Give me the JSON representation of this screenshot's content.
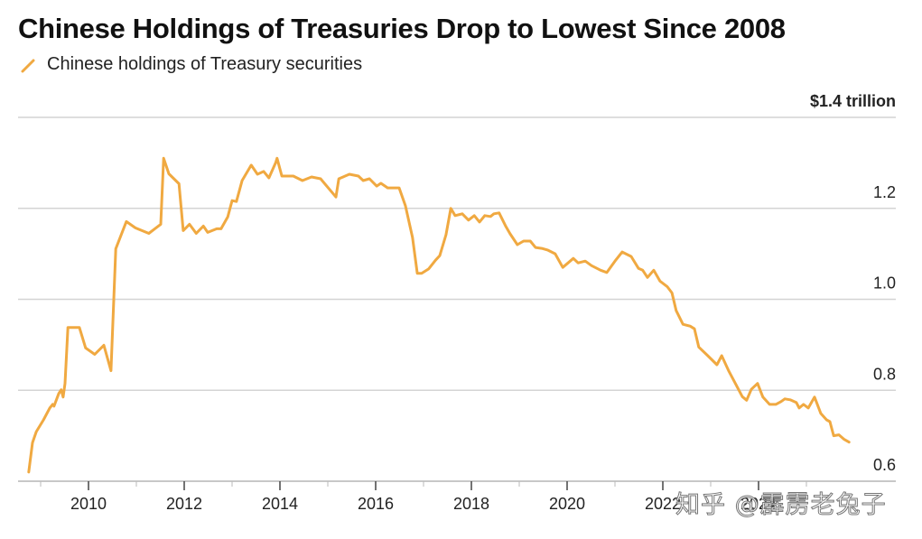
{
  "chart_data": {
    "type": "line",
    "title": "Chinese Holdings of Treasuries Drop to Lowest Since 2008",
    "xlabel": "",
    "ylabel": "",
    "y_unit_label": "$1.4 trillion",
    "ylim": [
      0.6,
      1.4
    ],
    "xlim": [
      2008.6,
      2025.8
    ],
    "grid": true,
    "legend_position": "top-left",
    "y_ticks": [
      {
        "value": 1.4,
        "label": "$1.4 trillion"
      },
      {
        "value": 1.2,
        "label": "1.2"
      },
      {
        "value": 1.0,
        "label": "1.0"
      },
      {
        "value": 0.8,
        "label": "0.8"
      },
      {
        "value": 0.6,
        "label": "0.6"
      }
    ],
    "x_ticks": [
      {
        "value": 2010,
        "label": "2010"
      },
      {
        "value": 2012,
        "label": "2012"
      },
      {
        "value": 2014,
        "label": "2014"
      },
      {
        "value": 2016,
        "label": "2016"
      },
      {
        "value": 2018,
        "label": "2018"
      },
      {
        "value": 2020,
        "label": "2020"
      },
      {
        "value": 2022,
        "label": "2022"
      },
      {
        "value": 2024,
        "label": "2024"
      }
    ],
    "x_minor_ticks": [
      2009,
      2011,
      2013,
      2015,
      2017,
      2019,
      2021,
      2023,
      2025
    ],
    "series": [
      {
        "name": "Chinese holdings of Treasury securities",
        "color": "#F0A941",
        "points": [
          [
            2008.75,
            0.62
          ],
          [
            2008.83,
            0.685
          ],
          [
            2008.91,
            0.709
          ],
          [
            2009.06,
            0.735
          ],
          [
            2009.19,
            0.761
          ],
          [
            2009.25,
            0.769
          ],
          [
            2009.28,
            0.765
          ],
          [
            2009.38,
            0.793
          ],
          [
            2009.43,
            0.801
          ],
          [
            2009.47,
            0.785
          ],
          [
            2009.51,
            0.815
          ],
          [
            2009.57,
            0.938
          ],
          [
            2009.81,
            0.938
          ],
          [
            2009.94,
            0.893
          ],
          [
            2010.13,
            0.879
          ],
          [
            2010.32,
            0.899
          ],
          [
            2010.47,
            0.843
          ],
          [
            2010.57,
            1.111
          ],
          [
            2010.79,
            1.171
          ],
          [
            2010.98,
            1.157
          ],
          [
            2011.26,
            1.145
          ],
          [
            2011.51,
            1.165
          ],
          [
            2011.57,
            1.31
          ],
          [
            2011.68,
            1.276
          ],
          [
            2011.89,
            1.254
          ],
          [
            2011.98,
            1.151
          ],
          [
            2012.11,
            1.165
          ],
          [
            2012.25,
            1.145
          ],
          [
            2012.4,
            1.161
          ],
          [
            2012.49,
            1.147
          ],
          [
            2012.68,
            1.155
          ],
          [
            2012.77,
            1.155
          ],
          [
            2012.91,
            1.181
          ],
          [
            2013.0,
            1.217
          ],
          [
            2013.09,
            1.215
          ],
          [
            2013.21,
            1.261
          ],
          [
            2013.4,
            1.295
          ],
          [
            2013.53,
            1.275
          ],
          [
            2013.66,
            1.281
          ],
          [
            2013.77,
            1.267
          ],
          [
            2013.91,
            1.3
          ],
          [
            2013.94,
            1.31
          ],
          [
            2014.04,
            1.271
          ],
          [
            2014.28,
            1.271
          ],
          [
            2014.47,
            1.261
          ],
          [
            2014.66,
            1.269
          ],
          [
            2014.85,
            1.265
          ],
          [
            2015.17,
            1.225
          ],
          [
            2015.23,
            1.265
          ],
          [
            2015.45,
            1.275
          ],
          [
            2015.64,
            1.271
          ],
          [
            2015.74,
            1.261
          ],
          [
            2015.87,
            1.265
          ],
          [
            2016.02,
            1.249
          ],
          [
            2016.11,
            1.255
          ],
          [
            2016.25,
            1.245
          ],
          [
            2016.49,
            1.245
          ],
          [
            2016.62,
            1.206
          ],
          [
            2016.77,
            1.136
          ],
          [
            2016.87,
            1.057
          ],
          [
            2016.96,
            1.057
          ],
          [
            2017.11,
            1.067
          ],
          [
            2017.25,
            1.086
          ],
          [
            2017.34,
            1.096
          ],
          [
            2017.47,
            1.142
          ],
          [
            2017.57,
            1.2
          ],
          [
            2017.66,
            1.184
          ],
          [
            2017.81,
            1.188
          ],
          [
            2017.94,
            1.174
          ],
          [
            2018.06,
            1.184
          ],
          [
            2018.17,
            1.17
          ],
          [
            2018.28,
            1.184
          ],
          [
            2018.4,
            1.182
          ],
          [
            2018.47,
            1.188
          ],
          [
            2018.58,
            1.19
          ],
          [
            2018.72,
            1.16
          ],
          [
            2018.81,
            1.144
          ],
          [
            2018.96,
            1.12
          ],
          [
            2019.09,
            1.128
          ],
          [
            2019.23,
            1.128
          ],
          [
            2019.34,
            1.114
          ],
          [
            2019.47,
            1.112
          ],
          [
            2019.6,
            1.108
          ],
          [
            2019.75,
            1.1
          ],
          [
            2019.91,
            1.07
          ],
          [
            2020.13,
            1.09
          ],
          [
            2020.23,
            1.08
          ],
          [
            2020.38,
            1.084
          ],
          [
            2020.51,
            1.074
          ],
          [
            2020.7,
            1.064
          ],
          [
            2020.83,
            1.059
          ],
          [
            2021.0,
            1.084
          ],
          [
            2021.15,
            1.104
          ],
          [
            2021.34,
            1.094
          ],
          [
            2021.49,
            1.068
          ],
          [
            2021.58,
            1.064
          ],
          [
            2021.68,
            1.048
          ],
          [
            2021.81,
            1.064
          ],
          [
            2021.94,
            1.04
          ],
          [
            2022.09,
            1.028
          ],
          [
            2022.19,
            1.014
          ],
          [
            2022.28,
            0.975
          ],
          [
            2022.42,
            0.945
          ],
          [
            2022.57,
            0.941
          ],
          [
            2022.66,
            0.935
          ],
          [
            2022.75,
            0.895
          ],
          [
            2022.94,
            0.876
          ],
          [
            2023.13,
            0.856
          ],
          [
            2023.23,
            0.876
          ],
          [
            2023.38,
            0.842
          ],
          [
            2023.53,
            0.812
          ],
          [
            2023.66,
            0.786
          ],
          [
            2023.75,
            0.778
          ],
          [
            2023.85,
            0.802
          ],
          [
            2023.98,
            0.815
          ],
          [
            2024.09,
            0.785
          ],
          [
            2024.23,
            0.769
          ],
          [
            2024.36,
            0.769
          ],
          [
            2024.47,
            0.775
          ],
          [
            2024.55,
            0.781
          ],
          [
            2024.66,
            0.779
          ],
          [
            2024.79,
            0.773
          ],
          [
            2024.85,
            0.761
          ],
          [
            2024.94,
            0.769
          ],
          [
            2025.04,
            0.761
          ],
          [
            2025.17,
            0.785
          ],
          [
            2025.3,
            0.749
          ],
          [
            2025.42,
            0.735
          ],
          [
            2025.49,
            0.731
          ],
          [
            2025.57,
            0.7
          ],
          [
            2025.68,
            0.702
          ],
          [
            2025.79,
            0.692
          ],
          [
            2025.89,
            0.686
          ]
        ]
      }
    ]
  },
  "legend": {
    "items": [
      {
        "label": "Chinese holdings of Treasury securities",
        "color": "#F0A941",
        "icon": "line-slash-icon"
      }
    ]
  },
  "watermark": "知乎 @霹雳老兔子",
  "colors": {
    "line": "#F0A941",
    "grid": "#D4D4D4",
    "axis": "#C8C8C8",
    "text": "#222222"
  }
}
